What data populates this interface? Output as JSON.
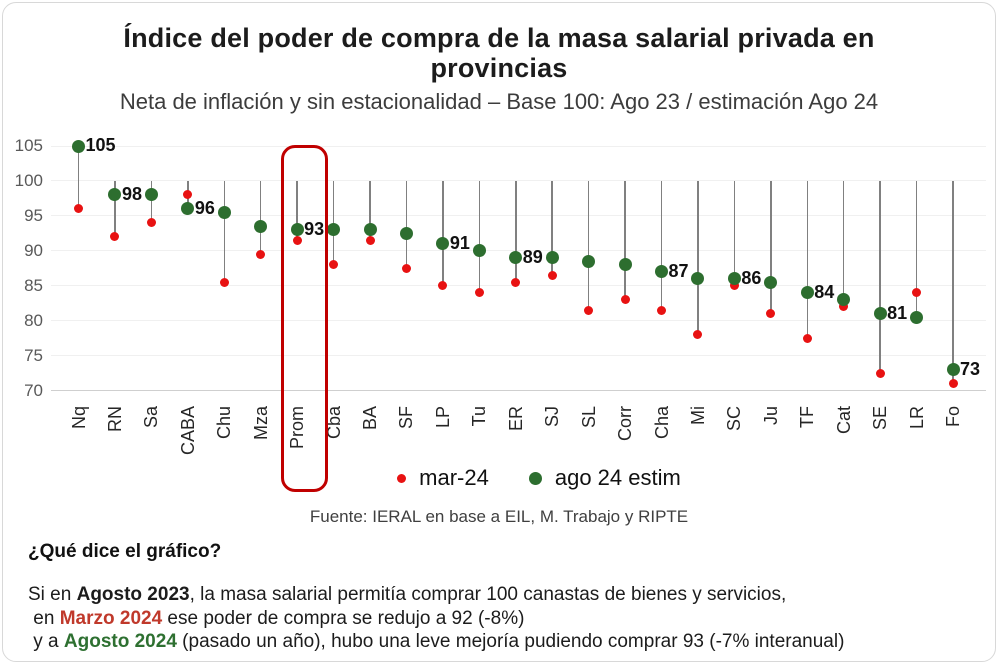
{
  "header": {
    "title": "Índice del poder de compra de la masa salarial privada en provincias",
    "subtitle": "Neta de inflación y sin estacionalidad – Base 100: Ago 23 / estimación Ago 24"
  },
  "chart_data": {
    "type": "scatter",
    "variant": "lollipop-drop-lines",
    "title": "Índice del poder de compra de la masa salarial privada en provincias",
    "categories": [
      "Nq",
      "RN",
      "Sa",
      "CABA",
      "Chu",
      "Mza",
      "Prom",
      "Cba",
      "BA",
      "SF",
      "LP",
      "Tu",
      "ER",
      "SJ",
      "SL",
      "Corr",
      "Cha",
      "Mi",
      "SC",
      "Ju",
      "TF",
      "Cat",
      "SE",
      "LR",
      "Fo"
    ],
    "series": [
      {
        "name": "mar-24",
        "color": "#e81212",
        "values": [
          96,
          92,
          94,
          98,
          85.5,
          89.5,
          91.5,
          88,
          91.5,
          87.5,
          85,
          84,
          85.5,
          86.5,
          81.5,
          83,
          81.5,
          78,
          85,
          81,
          77.5,
          82,
          72.5,
          84,
          71
        ]
      },
      {
        "name": "ago 24 estim",
        "color": "#2d6e2f",
        "values": [
          105,
          98,
          98,
          96,
          95.5,
          93.5,
          93,
          93,
          93,
          92.5,
          91,
          90,
          89,
          89,
          88.5,
          88,
          87,
          86,
          86,
          85.5,
          84,
          83,
          81,
          80.5,
          73
        ]
      }
    ],
    "baseline": 100,
    "ylim": [
      70,
      105
    ],
    "yticks": [
      70,
      75,
      80,
      85,
      90,
      95,
      100,
      105
    ],
    "grid": "horizontal-light",
    "stem_color": "#808080",
    "data_labels": {
      "Nq": 105,
      "RN": 98,
      "CABA": 96,
      "Prom": 93,
      "LP": 91,
      "ER": 89,
      "Cha": 87,
      "SC": 86,
      "TF": 84,
      "SE": 81,
      "Fo": 73
    },
    "highlight": {
      "category": "Prom",
      "color": "#c00000"
    },
    "legend_position": "bottom"
  },
  "legend": {
    "items": [
      {
        "label": "mar-24",
        "color": "#e81212"
      },
      {
        "label": "ago 24 estim",
        "color": "#2d6e2f"
      }
    ]
  },
  "source": "Fuente: IERAL en base a EIL, M. Trabajo y RIPTE",
  "question": "¿Qué dice el gráfico?",
  "explanation": [
    [
      {
        "t": "Si en "
      },
      {
        "t": "Agosto 2023",
        "b": true
      },
      {
        "t": ", la masa salarial permitía comprar 100 canastas de bienes y servicios,"
      }
    ],
    [
      {
        "t": " en "
      },
      {
        "t": "Marzo 2024",
        "b": true,
        "c": "#c0392b"
      },
      {
        "t": " ese poder de compra se redujo a 92 (-8%)"
      }
    ],
    [
      {
        "t": " y a "
      },
      {
        "t": "Agosto 2024",
        "b": true,
        "c": "#2e7031"
      },
      {
        "t": " (pasado un año), hubo una leve mejoría pudiendo comprar 93 (-7% interanual)"
      }
    ]
  ]
}
